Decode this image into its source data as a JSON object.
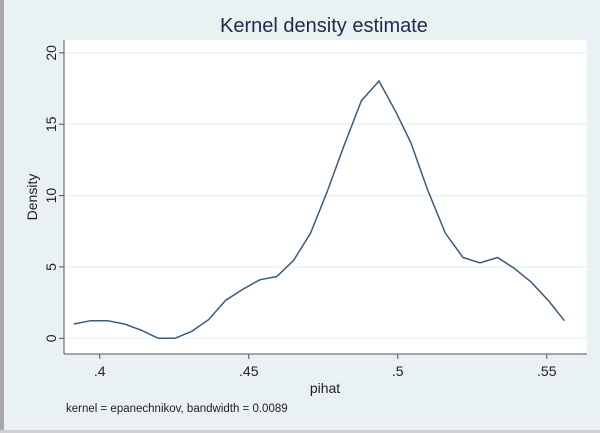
{
  "chart_data": {
    "type": "line",
    "title": "Kernel density estimate",
    "xlabel": "pihat",
    "ylabel": "Density",
    "note": "kernel = epanechnikov, bandwidth = 0.0089",
    "xlim": [
      0.388,
      0.5635
    ],
    "ylim": [
      -1.1,
      20.9
    ],
    "xticks": [
      0.4,
      0.45,
      0.5,
      0.55
    ],
    "xtick_labels": [
      ".4",
      ".45",
      ".5",
      ".55"
    ],
    "yticks": [
      0,
      5,
      10,
      15,
      20
    ],
    "ytick_labels": [
      "0",
      "5",
      "10",
      "15",
      "20"
    ],
    "grid": true,
    "line_color": "#3b5a7f",
    "series": [
      {
        "name": "density",
        "x": [
          0.3913,
          0.397,
          0.4026,
          0.4083,
          0.414,
          0.4196,
          0.4252,
          0.4309,
          0.4365,
          0.4422,
          0.4478,
          0.4537,
          0.4594,
          0.465,
          0.4707,
          0.4763,
          0.4818,
          0.4878,
          0.4937,
          0.4995,
          0.5044,
          0.51,
          0.516,
          0.5219,
          0.5276,
          0.5335,
          0.5391,
          0.5448,
          0.5508,
          0.5559
        ],
        "y": [
          1.0,
          1.23,
          1.23,
          1.0,
          0.56,
          0,
          0,
          0.49,
          1.3,
          2.65,
          3.41,
          4.1,
          4.33,
          5.45,
          7.36,
          10.26,
          13.4,
          16.65,
          18.03,
          15.8,
          13.7,
          10.4,
          7.36,
          5.66,
          5.28,
          5.66,
          4.9,
          3.93,
          2.58,
          1.23
        ]
      }
    ]
  }
}
